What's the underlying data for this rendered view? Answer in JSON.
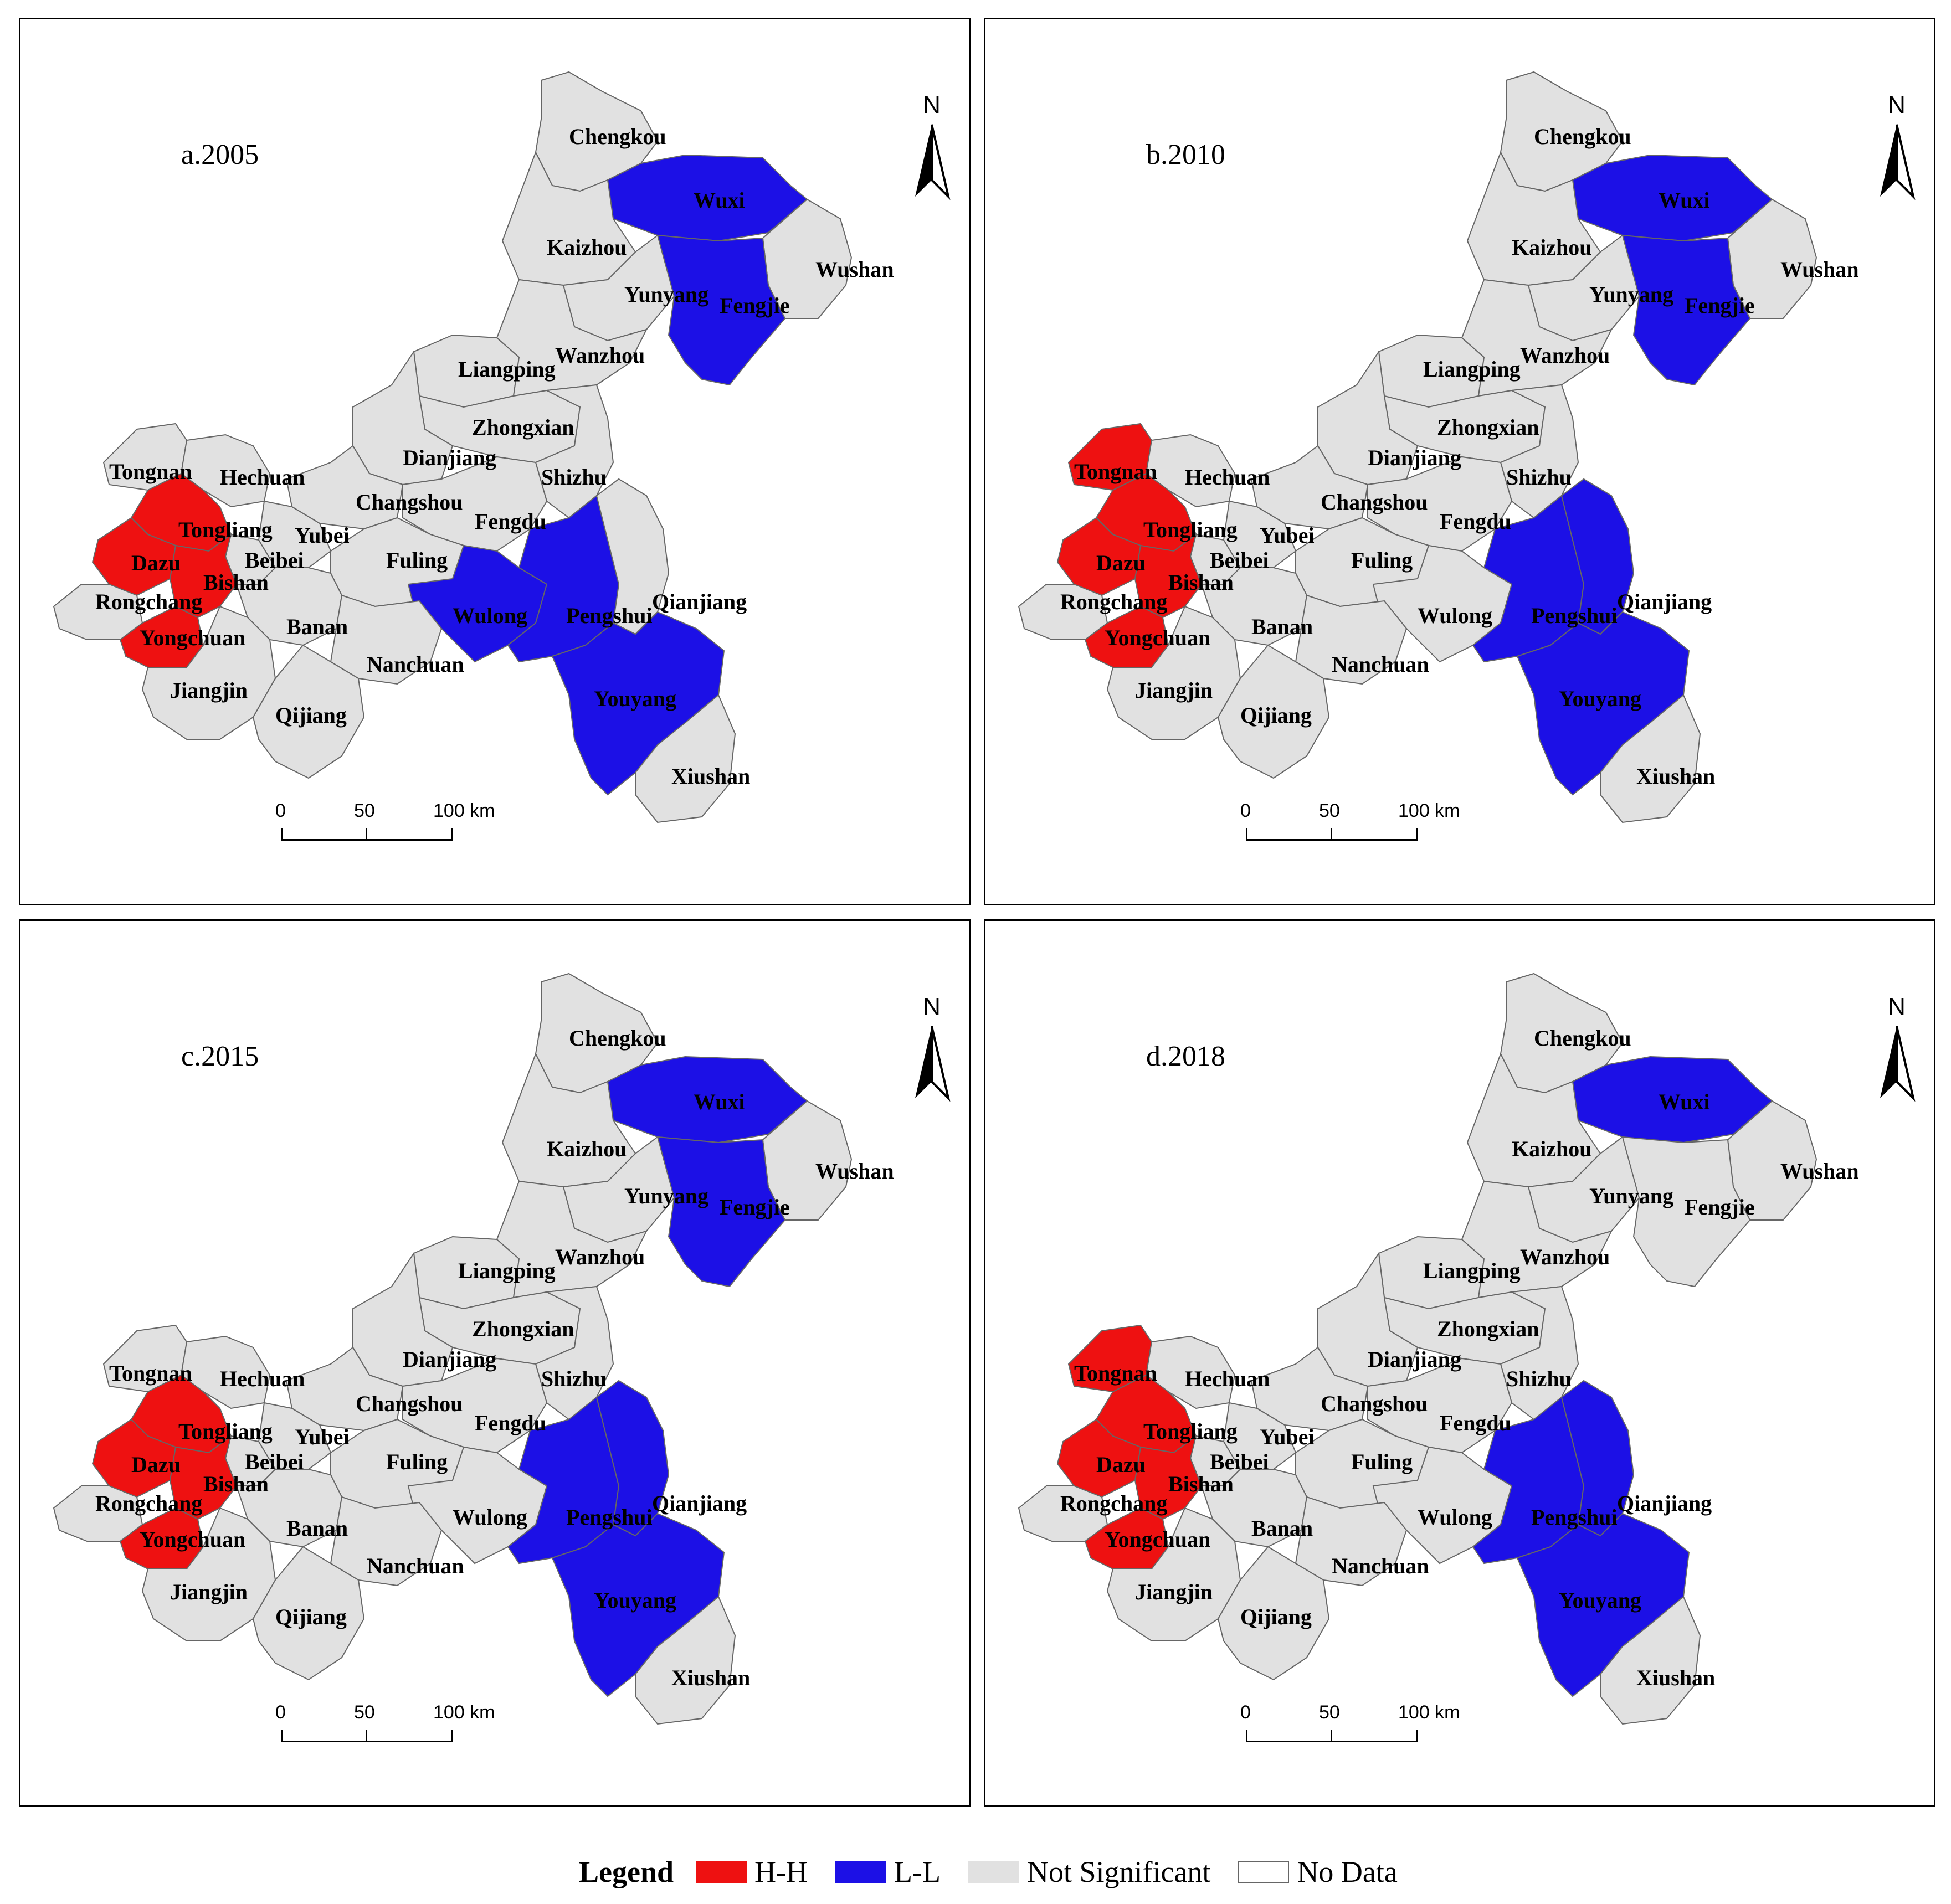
{
  "colors": {
    "hh": "#ee1111",
    "ll": "#1c10e6",
    "ns": "#e1e1e1",
    "nodata": "#ffffff",
    "border": "#666666"
  },
  "scale_labels": [
    "0",
    "50",
    "100 km"
  ],
  "north_label": "N",
  "legend": {
    "title": "Legend",
    "items": [
      {
        "label": "H-H",
        "class": "hh"
      },
      {
        "label": "L-L",
        "class": "ll"
      },
      {
        "label": "Not Significant",
        "class": "ns"
      },
      {
        "label": "No Data",
        "class": "nodata"
      }
    ]
  },
  "districts": [
    "Chengkou",
    "Wuxi",
    "Kaizhou",
    "Wushan",
    "Yunyang",
    "Fengjie",
    "Liangping",
    "Wanzhou",
    "Zhongxian",
    "Dianjiang",
    "Shizhu",
    "Tongnan",
    "Hechuan",
    "Changshou",
    "Tongliang",
    "Yubei",
    "Fengdu",
    "Dazu",
    "Beibei",
    "Fuling",
    "Bishan",
    "Rongchang",
    "Wulong",
    "Pengshui",
    "Qianjiang",
    "Yongchuan",
    "Banan",
    "Nanchuan",
    "Jiangjin",
    "Youyang",
    "Qijiang",
    "Xiushan"
  ],
  "panels": [
    {
      "title": "a.2005",
      "classes": {
        "Wuxi": "ll",
        "Fengjie": "ll",
        "Wulong": "ll",
        "Pengshui": "ll",
        "Youyang": "ll",
        "Tongliang": "hh",
        "Dazu": "hh",
        "Bishan": "hh",
        "Yongchuan": "hh"
      }
    },
    {
      "title": "b.2010",
      "classes": {
        "Wuxi": "ll",
        "Fengjie": "ll",
        "Pengshui": "ll",
        "Qianjiang": "ll",
        "Youyang": "ll",
        "Tongnan": "hh",
        "Tongliang": "hh",
        "Dazu": "hh",
        "Bishan": "hh",
        "Yongchuan": "hh"
      }
    },
    {
      "title": "c.2015",
      "classes": {
        "Wuxi": "ll",
        "Fengjie": "ll",
        "Pengshui": "ll",
        "Qianjiang": "ll",
        "Youyang": "ll",
        "Tongliang": "hh",
        "Dazu": "hh",
        "Bishan": "hh",
        "Yongchuan": "hh"
      }
    },
    {
      "title": "d.2018",
      "classes": {
        "Wuxi": "ll",
        "Pengshui": "ll",
        "Qianjiang": "ll",
        "Youyang": "ll",
        "Tongnan": "hh",
        "Tongliang": "hh",
        "Dazu": "hh",
        "Bishan": "hh",
        "Yongchuan": "hh"
      }
    }
  ]
}
